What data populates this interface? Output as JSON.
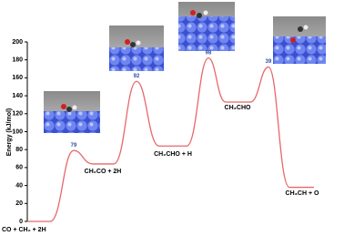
{
  "chart_data": {
    "type": "energy-profile",
    "y_label": "Energy (kJ/mol)",
    "ylim": [
      0,
      200
    ],
    "yticks": [
      0,
      20,
      40,
      60,
      80,
      100,
      120,
      140,
      160,
      180,
      200
    ],
    "color": "#e8666b",
    "barrier_color": "#2b4fa8",
    "states": [
      {
        "label": "CO + CH₂ + 2H",
        "energy": 0
      },
      {
        "label": "CH₂CO + 2H",
        "energy": 64
      },
      {
        "label": "CH₂CHO + H",
        "energy": 84
      },
      {
        "label": "CH₃CHO",
        "energy": 133
      },
      {
        "label": "CH₃CH + O",
        "energy": 38
      }
    ],
    "transition_states": [
      {
        "energy": 79,
        "barrier": 79
      },
      {
        "energy": 156,
        "barrier": 92
      },
      {
        "energy": 182,
        "barrier": 98
      },
      {
        "energy": 172,
        "barrier": 39
      }
    ]
  }
}
